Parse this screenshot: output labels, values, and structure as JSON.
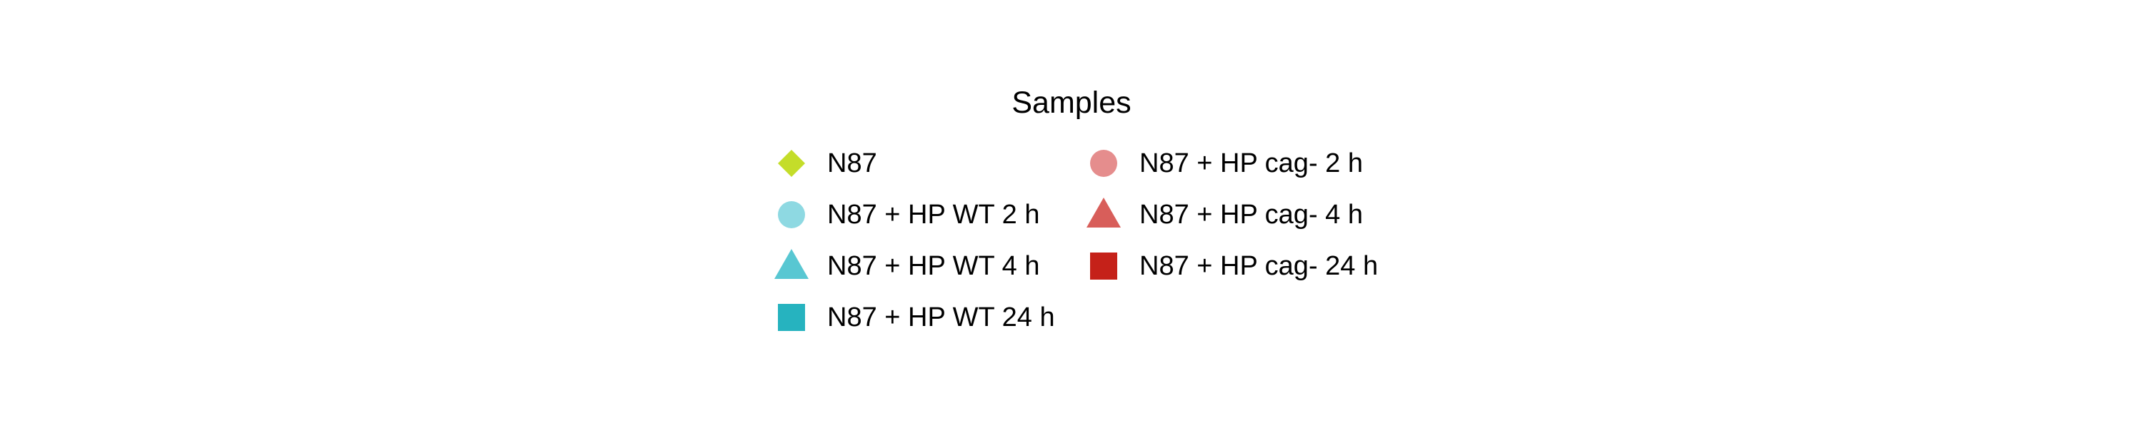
{
  "chart_data": {
    "type": "legend",
    "title": "Samples",
    "legend": {
      "columns": [
        [
          {
            "label": "N87",
            "shape": "diamond",
            "color": "#c4dd2a"
          },
          {
            "label": "N87 + HP WT 2 h",
            "shape": "circle",
            "color": "#8ed9e2"
          },
          {
            "label": "N87 + HP WT 4 h",
            "shape": "triangle",
            "color": "#58c7d2"
          },
          {
            "label": "N87 + HP WT 24 h",
            "shape": "square",
            "color": "#26b3bf"
          }
        ],
        [
          {
            "label": "N87 + HP cag- 2 h",
            "shape": "circle",
            "color": "#e58d8d"
          },
          {
            "label": "N87 + HP cag- 4 h",
            "shape": "triangle",
            "color": "#d85e5a"
          },
          {
            "label": "N87 + HP cag- 24 h",
            "shape": "square",
            "color": "#c52119"
          }
        ]
      ]
    }
  }
}
